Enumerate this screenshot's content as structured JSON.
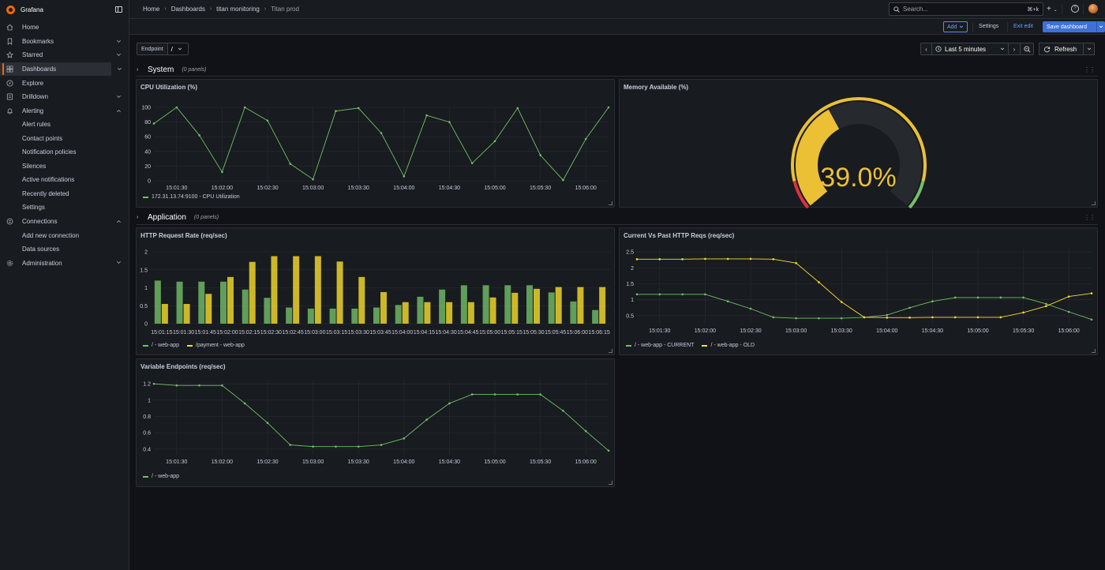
{
  "app": {
    "title": "Grafana"
  },
  "sidebar": {
    "items": [
      {
        "label": "Home",
        "icon": "home-icon"
      },
      {
        "label": "Bookmarks",
        "icon": "bookmark-icon",
        "chevron": "down"
      },
      {
        "label": "Starred",
        "icon": "star-icon",
        "chevron": "down"
      },
      {
        "label": "Dashboards",
        "icon": "dashboards-icon",
        "chevron": "down",
        "active": true
      },
      {
        "label": "Explore",
        "icon": "compass-icon"
      },
      {
        "label": "Drilldown",
        "icon": "drilldown-icon",
        "chevron": "down"
      },
      {
        "label": "Alerting",
        "icon": "bell-icon",
        "chevron": "up"
      },
      {
        "label": "Connections",
        "icon": "plug-icon",
        "chevron": "up"
      },
      {
        "label": "Administration",
        "icon": "gear-icon",
        "chevron": "down"
      }
    ],
    "alerting_sub": [
      "Alert rules",
      "Contact points",
      "Notification policies",
      "Silences",
      "Active notifications",
      "Recently deleted",
      "Settings"
    ],
    "connections_sub": [
      "Add new connection",
      "Data sources"
    ]
  },
  "breadcrumb": [
    "Home",
    "Dashboards",
    "titan monitoring",
    "Titan prod"
  ],
  "search": {
    "placeholder": "Search...",
    "shortcut": "⌘+k"
  },
  "toolbar": {
    "add_label": "Add",
    "settings_label": "Settings",
    "exit_label": "Exit edit",
    "save_label": "Save dashboard"
  },
  "variables": {
    "endpoint_label": "Endpoint",
    "endpoint_value": "/"
  },
  "time": {
    "range_label": "Last 5 minutes",
    "refresh_label": "Refresh"
  },
  "rows": [
    {
      "title": "System",
      "count": "(0 panels)"
    },
    {
      "title": "Application",
      "count": "(0 panels)"
    }
  ],
  "panels": {
    "cpu": {
      "title": "CPU Utilization (%)"
    },
    "memory": {
      "title": "Memory Available (%)",
      "value_text": "39.0%"
    },
    "http_rate": {
      "title": "HTTP Request Rate (req/sec)"
    },
    "current_past": {
      "title": "Current Vs Past HTTP Reqs (req/sec)"
    },
    "variable": {
      "title": "Variable Endpoints (req/sec)"
    }
  },
  "colors": {
    "green": "#73bf69",
    "yellow": "#fade2a",
    "gauge": "#ebc035",
    "accent": "#f46800",
    "blue": "#3d71d9"
  },
  "chart_data": [
    {
      "type": "line",
      "title": "CPU Utilization (%)",
      "x_ticks": [
        "15:01:30",
        "15:02:00",
        "15:02:30",
        "15:03:00",
        "15:03:30",
        "15:04:00",
        "15:04:30",
        "15:05:00",
        "15:05:30",
        "15:06:00"
      ],
      "y_ticks": [
        0,
        20,
        40,
        60,
        80,
        100
      ],
      "ylim": [
        0,
        100
      ],
      "series": [
        {
          "name": "172.31.13.74:9100 - CPU Utilization",
          "color": "#73bf69",
          "values": [
            78,
            100,
            62,
            12,
            100,
            82,
            23,
            2,
            95,
            99,
            65,
            6,
            89,
            80,
            24,
            54,
            99,
            35,
            1,
            57,
            100
          ]
        }
      ],
      "legend": "bottom"
    },
    {
      "type": "gauge",
      "title": "Memory Available (%)",
      "value": 39.0,
      "min": 0,
      "max": 100,
      "thresholds": [
        {
          "to": 10,
          "color": "#e02f44"
        },
        {
          "to": 90,
          "color": "#ebc035"
        },
        {
          "to": 100,
          "color": "#73bf69"
        }
      ]
    },
    {
      "type": "bar",
      "title": "HTTP Request Rate (req/sec)",
      "categories": [
        "15:01:15",
        "15:01:30",
        "15:01:45",
        "15:02:00",
        "15:02:15",
        "15:02:30",
        "15:02:45",
        "15:03:00",
        "15:03:15",
        "15:03:30",
        "15:03:45",
        "15:04:00",
        "15:04:15",
        "15:04:30",
        "15:04:45",
        "15:05:00",
        "15:05:15",
        "15:05:30",
        "15:05:45",
        "15:06:00",
        "15:06:15"
      ],
      "y_ticks": [
        0,
        0.5,
        1,
        1.5,
        2
      ],
      "ylim": [
        0,
        2
      ],
      "series": [
        {
          "name": "/ - web-app",
          "color": "#73bf69",
          "values": [
            1.2,
            1.17,
            1.17,
            1.17,
            0.95,
            0.72,
            0.45,
            0.42,
            0.42,
            0.42,
            0.45,
            0.52,
            0.75,
            0.95,
            1.07,
            1.07,
            1.07,
            1.07,
            0.87,
            0.62,
            0.38
          ]
        },
        {
          "name": "/payment - web-app",
          "color": "#fade2a",
          "values": [
            0.55,
            0.55,
            0.83,
            1.3,
            1.72,
            1.88,
            1.88,
            1.88,
            1.73,
            1.3,
            0.88,
            0.6,
            0.6,
            0.6,
            0.6,
            0.73,
            0.86,
            0.97,
            1.02,
            1.02,
            1.02
          ]
        }
      ],
      "legend": "bottom"
    },
    {
      "type": "line",
      "title": "Current Vs Past HTTP Reqs (req/sec)",
      "x_ticks": [
        "15:01:30",
        "15:02:00",
        "15:02:30",
        "15:03:00",
        "15:03:30",
        "15:04:00",
        "15:04:30",
        "15:05:00",
        "15:05:30",
        "15:06:00"
      ],
      "y_ticks": [
        0.5,
        1,
        1.5,
        2,
        2.5
      ],
      "ylim": [
        0.25,
        2.6
      ],
      "series": [
        {
          "name": "/ - web-app - CURRENT",
          "color": "#73bf69",
          "values": [
            1.17,
            1.17,
            1.17,
            1.17,
            0.95,
            0.72,
            0.45,
            0.42,
            0.42,
            0.42,
            0.45,
            0.52,
            0.75,
            0.95,
            1.07,
            1.07,
            1.07,
            1.07,
            0.87,
            0.62,
            0.38
          ]
        },
        {
          "name": "/ - web-app - OLD",
          "color": "#fade2a",
          "values": [
            2.27,
            2.27,
            2.27,
            2.28,
            2.28,
            2.28,
            2.27,
            2.15,
            1.55,
            0.93,
            0.45,
            0.44,
            0.44,
            0.45,
            0.45,
            0.45,
            0.45,
            0.6,
            0.8,
            1.1,
            1.2
          ]
        }
      ],
      "legend": "bottom"
    },
    {
      "type": "line",
      "title": "Variable Endpoints (req/sec)",
      "x_ticks": [
        "15:01:30",
        "15:02:00",
        "15:02:30",
        "15:03:00",
        "15:03:30",
        "15:04:00",
        "15:04:30",
        "15:05:00",
        "15:05:30",
        "15:06:00"
      ],
      "y_ticks": [
        0.4,
        0.6,
        0.8,
        1,
        1.2
      ],
      "ylim": [
        0.33,
        1.25
      ],
      "series": [
        {
          "name": "/ - web-app",
          "color": "#73bf69",
          "values": [
            1.2,
            1.18,
            1.18,
            1.18,
            0.96,
            0.72,
            0.45,
            0.43,
            0.43,
            0.43,
            0.45,
            0.53,
            0.76,
            0.96,
            1.07,
            1.07,
            1.07,
            1.07,
            0.87,
            0.62,
            0.38
          ]
        }
      ],
      "legend": "bottom"
    }
  ]
}
